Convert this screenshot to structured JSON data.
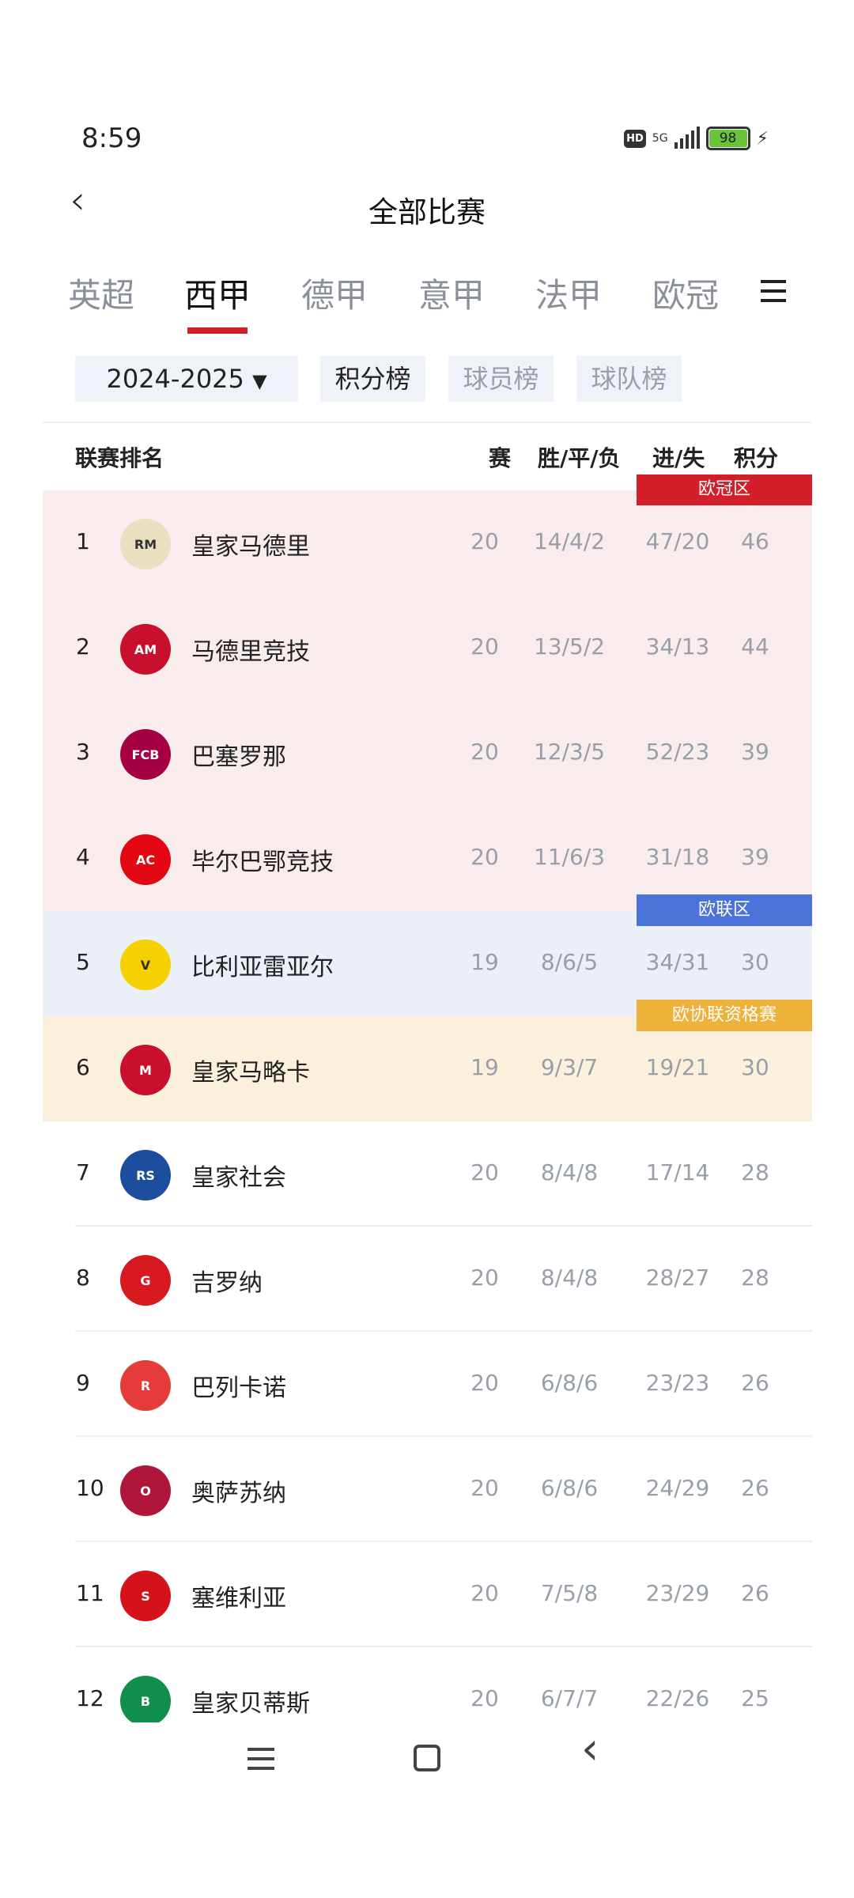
{
  "status_bar": {
    "time": "8:59",
    "hd": "HD",
    "network": "5G",
    "battery": "98"
  },
  "header": {
    "title": "全部比赛"
  },
  "tabs": [
    {
      "label": "英超"
    },
    {
      "label": "西甲",
      "active": true
    },
    {
      "label": "德甲"
    },
    {
      "label": "意甲"
    },
    {
      "label": "法甲"
    },
    {
      "label": "欧冠"
    }
  ],
  "filters": {
    "season": "2024-2025",
    "views": [
      "积分榜",
      "球员榜",
      "球队榜"
    ],
    "selected_view": "积分榜"
  },
  "table": {
    "columns": [
      "联赛排名",
      "赛",
      "胜/平/负",
      "进/失",
      "积分"
    ],
    "zones": {
      "ucl": {
        "label": "欧冠区",
        "color": "#d21f2a",
        "bg": "#f8ecec"
      },
      "uel": {
        "label": "欧联区",
        "color": "#4a72d8",
        "bg": "#ebeff8"
      },
      "uecl": {
        "label": "欧协联资格赛",
        "color": "#eeb13a",
        "bg": "#faf0dc"
      }
    },
    "rows": [
      {
        "rank": "1",
        "team": "皇家马德里",
        "played": "20",
        "wdl": "14/4/2",
        "goals": "47/20",
        "points": "46",
        "zone": "ucl"
      },
      {
        "rank": "2",
        "team": "马德里竞技",
        "played": "20",
        "wdl": "13/5/2",
        "goals": "34/13",
        "points": "44",
        "zone": "ucl"
      },
      {
        "rank": "3",
        "team": "巴塞罗那",
        "played": "20",
        "wdl": "12/3/5",
        "goals": "52/23",
        "points": "39",
        "zone": "ucl"
      },
      {
        "rank": "4",
        "team": "毕尔巴鄂竞技",
        "played": "20",
        "wdl": "11/6/3",
        "goals": "31/18",
        "points": "39",
        "zone": "ucl"
      },
      {
        "rank": "5",
        "team": "比利亚雷亚尔",
        "played": "19",
        "wdl": "8/6/5",
        "goals": "34/31",
        "points": "30",
        "zone": "uel"
      },
      {
        "rank": "6",
        "team": "皇家马略卡",
        "played": "19",
        "wdl": "9/3/7",
        "goals": "19/21",
        "points": "30",
        "zone": "uecl"
      },
      {
        "rank": "7",
        "team": "皇家社会",
        "played": "20",
        "wdl": "8/4/8",
        "goals": "17/14",
        "points": "28"
      },
      {
        "rank": "8",
        "team": "吉罗纳",
        "played": "20",
        "wdl": "8/4/8",
        "goals": "28/27",
        "points": "28"
      },
      {
        "rank": "9",
        "team": "巴列卡诺",
        "played": "20",
        "wdl": "6/8/6",
        "goals": "23/23",
        "points": "26"
      },
      {
        "rank": "10",
        "team": "奥萨苏纳",
        "played": "20",
        "wdl": "6/8/6",
        "goals": "24/29",
        "points": "26"
      },
      {
        "rank": "11",
        "team": "塞维利亚",
        "played": "20",
        "wdl": "7/5/8",
        "goals": "23/29",
        "points": "26"
      },
      {
        "rank": "12",
        "team": "皇家贝蒂斯",
        "played": "20",
        "wdl": "6/7/7",
        "goals": "22/26",
        "points": "25"
      }
    ]
  }
}
